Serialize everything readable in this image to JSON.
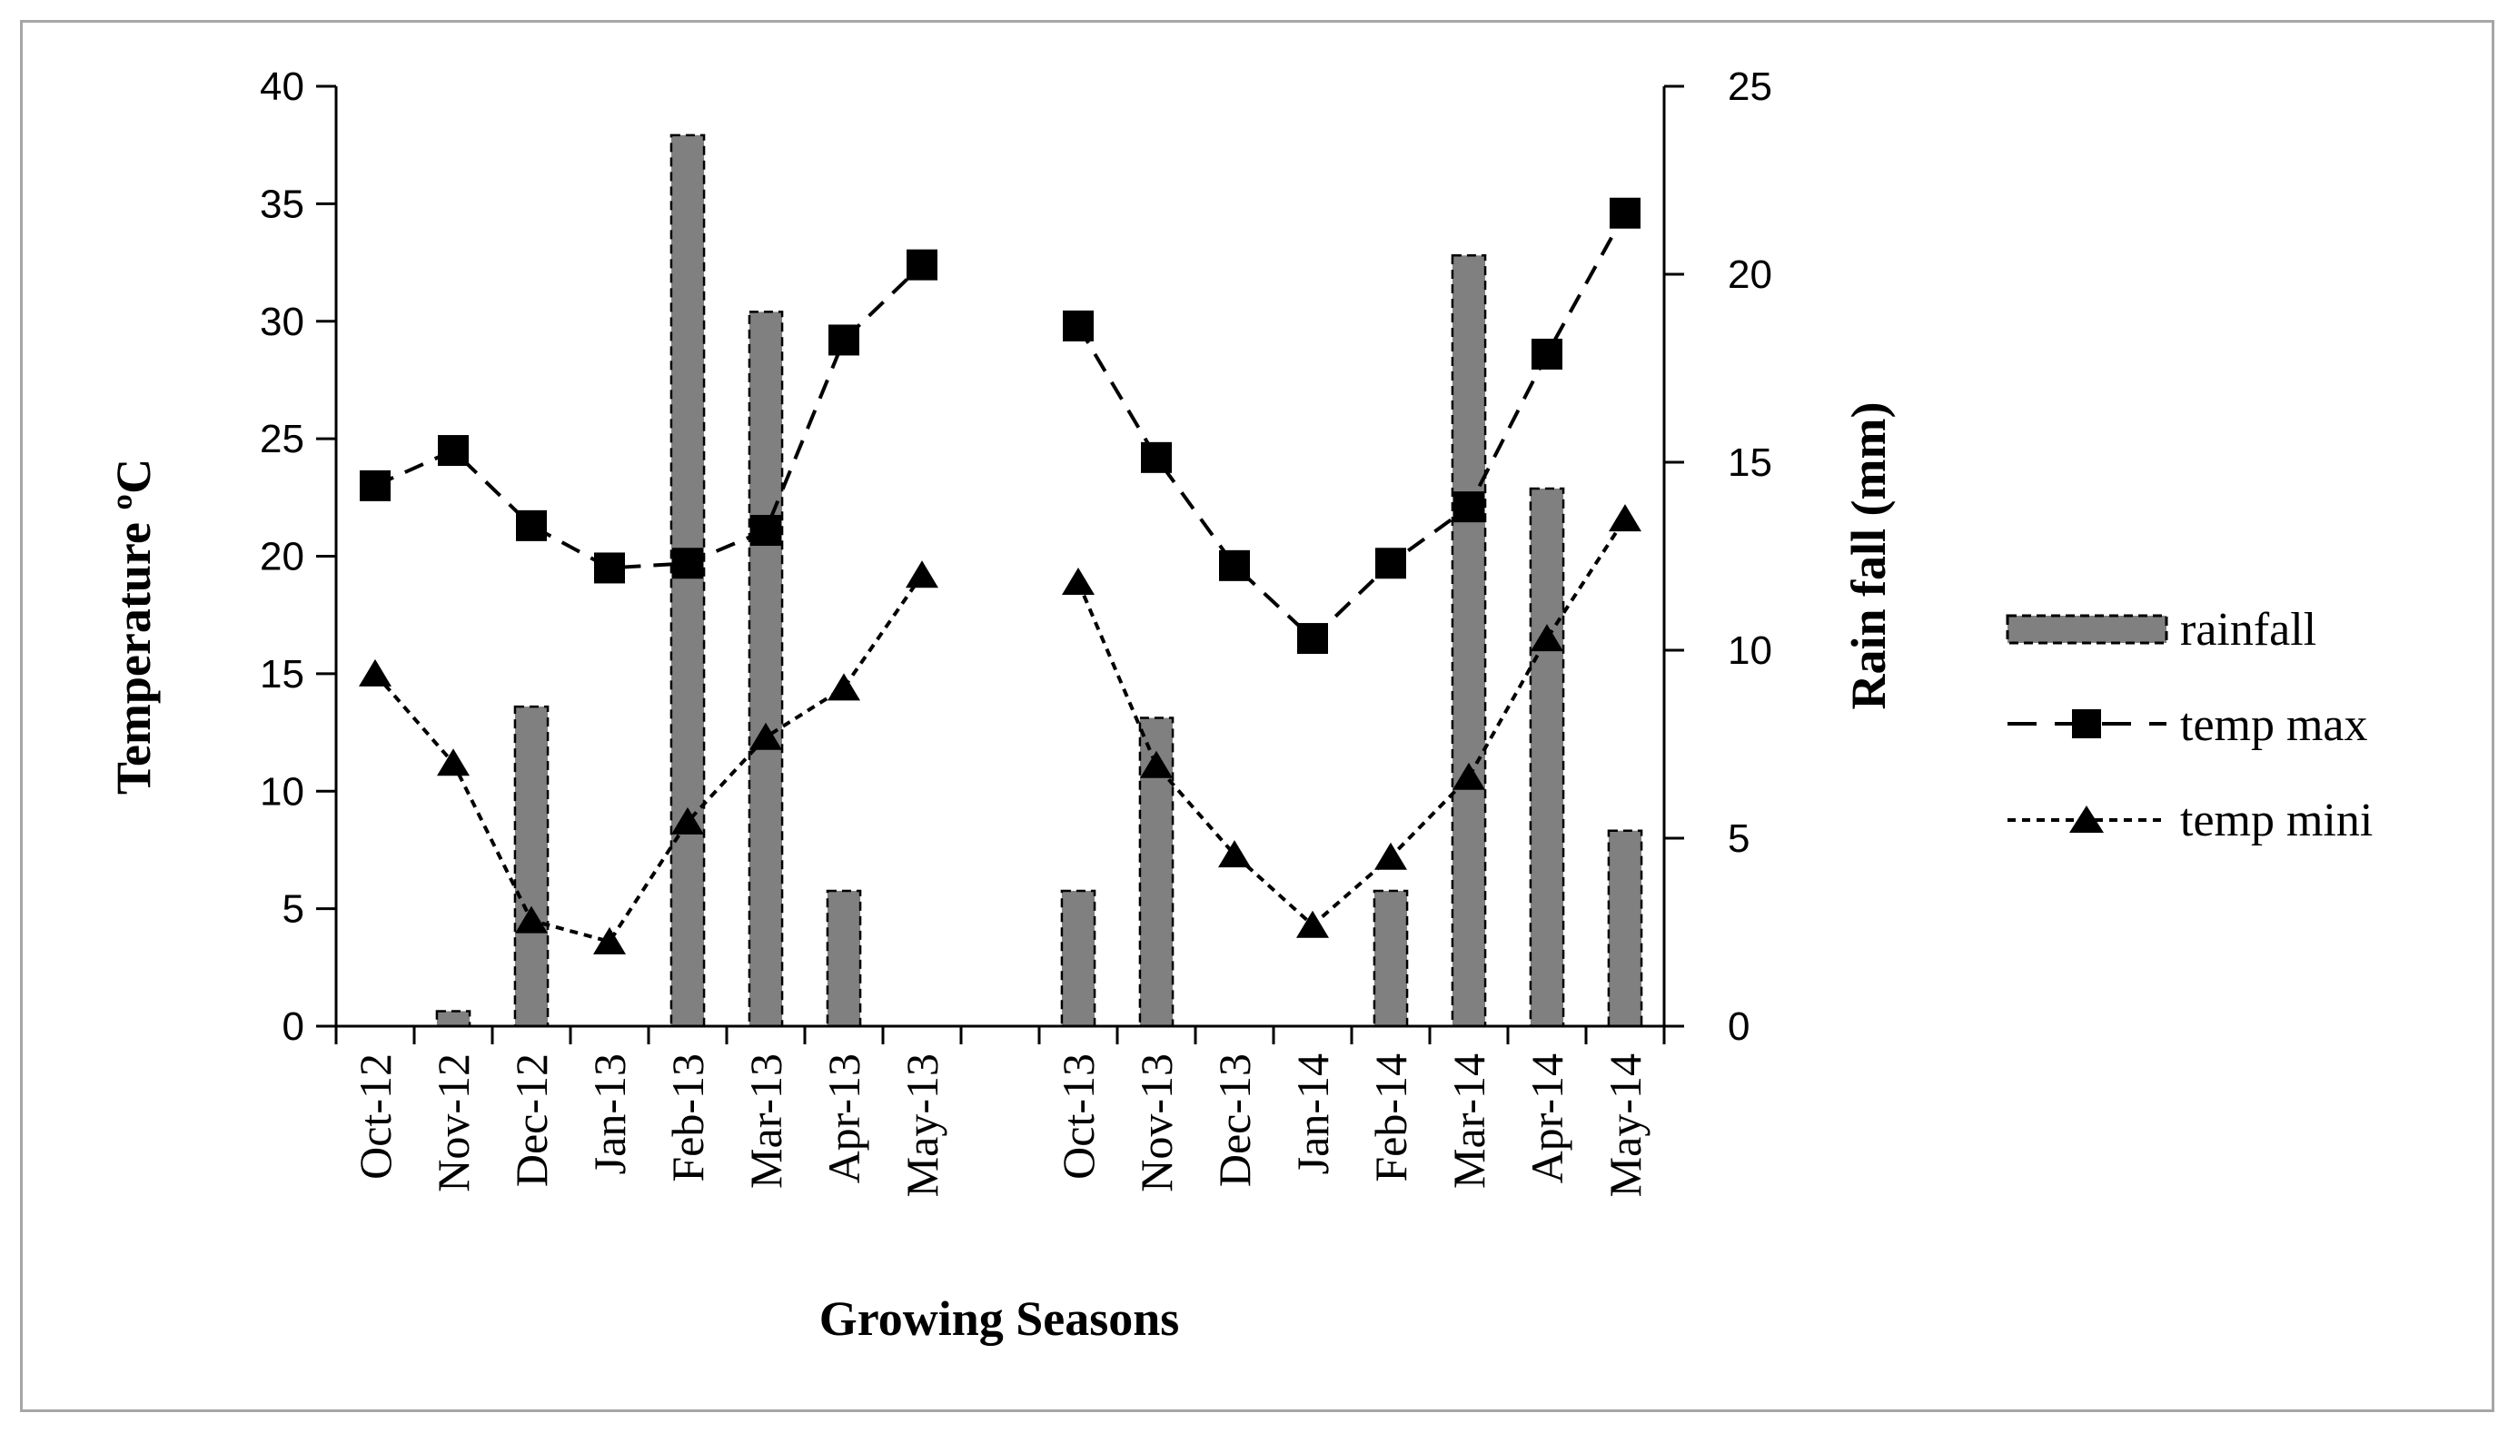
{
  "chart_data": {
    "type": "bar+line",
    "title": "",
    "xlabel": "Growing Seasons",
    "ylabel_left": "Temperature ºC",
    "ylabel_right": "Rain fall (mm)",
    "ylim_left": [
      0,
      40
    ],
    "ylim_right": [
      0,
      25
    ],
    "yticks_left": [
      "0",
      "5",
      "10",
      "15",
      "20",
      "25",
      "30",
      "35",
      "40"
    ],
    "yticks_right": [
      "0",
      "5",
      "10",
      "15",
      "20",
      "25"
    ],
    "grid": false,
    "legend_position": "right",
    "categories": [
      "Oct-12",
      "Nov-12",
      "Dec-12",
      "Jan-13",
      "Feb-13",
      "Mar-13",
      "Apr-13",
      "May-13",
      "",
      "Oct-13",
      "Nov-13",
      "Dec-13",
      "Jan-14",
      "Feb-14",
      "Mar-14",
      "Apr-14",
      "May-14"
    ],
    "series": [
      {
        "name": "rainfall",
        "type": "bar",
        "axis": "right",
        "color": "#808080",
        "values": [
          0,
          0.4,
          8.5,
          0,
          23.7,
          19,
          3.6,
          0,
          null,
          3.6,
          8.2,
          0,
          0,
          3.6,
          20.5,
          14.3,
          5.2
        ]
      },
      {
        "name": "temp max",
        "type": "line",
        "axis": "left",
        "marker": "square",
        "dash": "long",
        "color": "#000000",
        "values": [
          23,
          24.5,
          21.3,
          19.5,
          19.7,
          21.1,
          29.2,
          32.4,
          null,
          29.8,
          24.2,
          19.6,
          16.5,
          19.7,
          22.1,
          28.6,
          34.6
        ]
      },
      {
        "name": "temp mini",
        "type": "line",
        "axis": "left",
        "marker": "triangle",
        "dash": "short",
        "color": "#000000",
        "values": [
          15,
          11.2,
          4.5,
          3.6,
          8.7,
          12.3,
          14.4,
          19.2,
          null,
          18.9,
          11.1,
          7.3,
          4.3,
          7.2,
          10.6,
          16.5,
          21.6
        ]
      }
    ]
  }
}
